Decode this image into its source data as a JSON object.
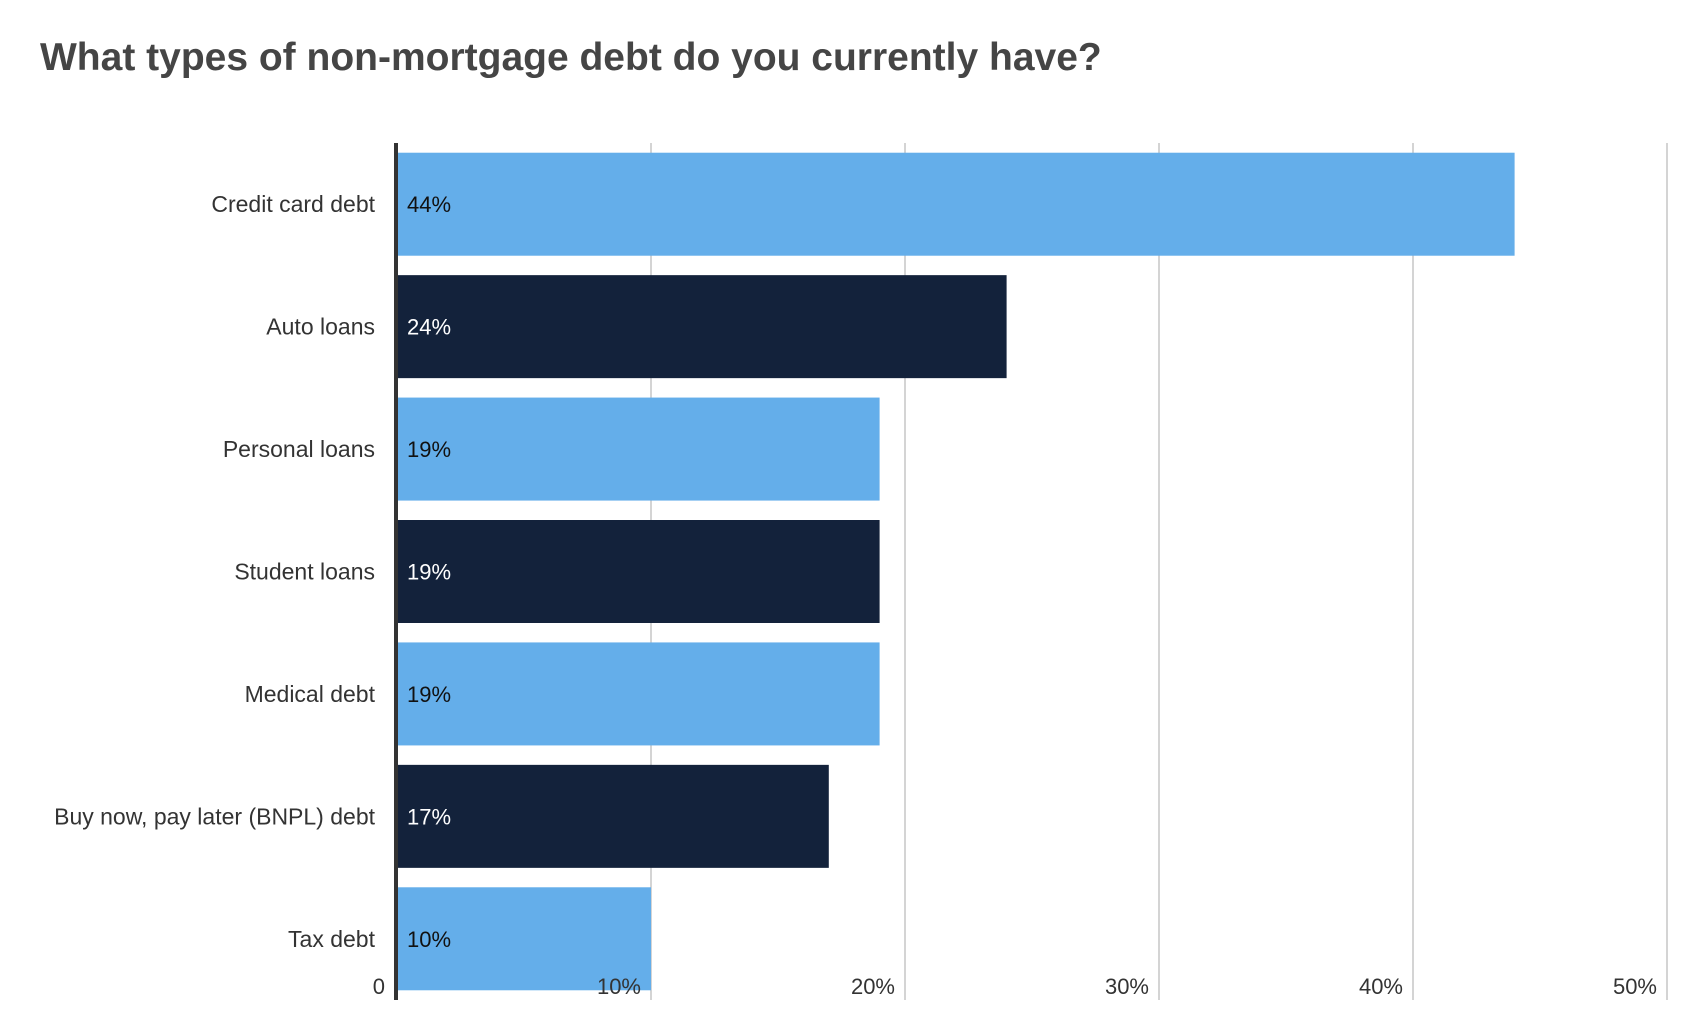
{
  "chart_data": {
    "type": "bar",
    "orientation": "horizontal",
    "title": "What types of non-mortgage debt do you currently have?",
    "categories": [
      "Credit card debt",
      "Auto loans",
      "Personal loans",
      "Student loans",
      "Medical debt",
      "Buy now, pay later (BNPL) debt",
      "Tax debt"
    ],
    "values": [
      44,
      24,
      19,
      19,
      19,
      17,
      10
    ],
    "value_labels": [
      "44%",
      "24%",
      "19%",
      "19%",
      "19%",
      "17%",
      "10%"
    ],
    "x_ticks": [
      0,
      10,
      20,
      30,
      40,
      50
    ],
    "x_tick_labels": [
      "0",
      "10%",
      "20%",
      "30%",
      "40%",
      "50%"
    ],
    "xlim": [
      0,
      50
    ],
    "grid": true,
    "xlabel": "",
    "ylabel": "",
    "colors": {
      "light_bar": "#64aeea",
      "dark_bar": "#13223b",
      "light_bar_label": "#111111",
      "dark_bar_label": "#ffffff",
      "gridline": "#d4d4d4",
      "axis": "#333333",
      "title": "#454545"
    }
  }
}
